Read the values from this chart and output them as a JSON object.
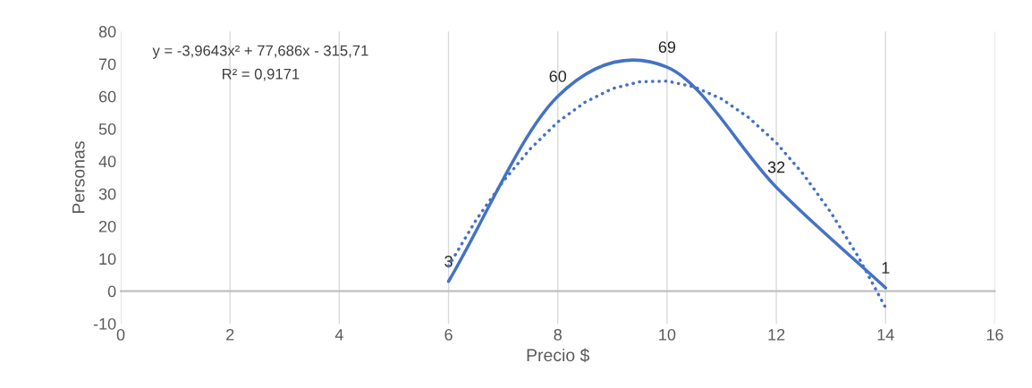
{
  "chart_data": {
    "type": "line",
    "xlabel": "Precio $",
    "ylabel": "Personas",
    "xlim": [
      0,
      16
    ],
    "xticks": [
      0,
      2,
      4,
      6,
      8,
      10,
      12,
      14,
      16
    ],
    "ylim": [
      -10,
      80
    ],
    "yticks": [
      -10,
      0,
      10,
      20,
      30,
      40,
      50,
      60,
      70,
      80
    ],
    "grid": "x",
    "marker": "none",
    "annotations": [
      "y = -3,9643x² + 77,686x - 315,71",
      "R² = 0,9171"
    ],
    "series": [
      {
        "color": "#4472c4",
        "x": [
          6,
          8,
          10,
          12,
          14
        ],
        "values": [
          3,
          60,
          69,
          32,
          1
        ],
        "value_labels": [
          "3",
          "60",
          "69",
          "32",
          "1"
        ],
        "line_style": "solid"
      },
      {
        "color": "#4472c4",
        "x": [
          6,
          6.5,
          7,
          7.5,
          8,
          8.5,
          9,
          9.5,
          10,
          10.5,
          11,
          11.5,
          12,
          12.5,
          13,
          13.5,
          14
        ],
        "values": [
          7.7,
          21.8,
          33.8,
          43.9,
          52.1,
          58.2,
          62.4,
          64.5,
          64.7,
          62.9,
          59.2,
          53.4,
          45.7,
          35.9,
          24.2,
          10.6,
          -5.1
        ],
        "line_style": "dotted"
      }
    ]
  }
}
